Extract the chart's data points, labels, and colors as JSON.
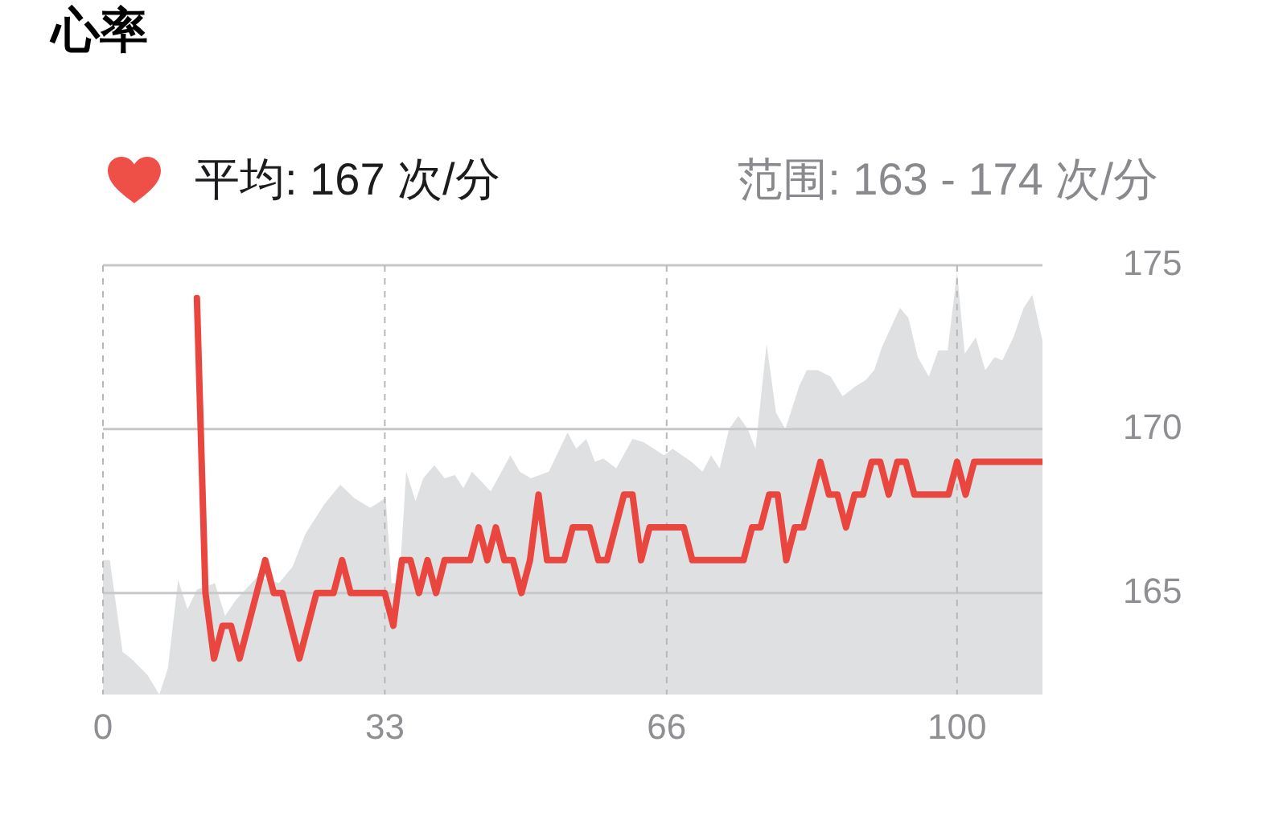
{
  "chart_data": {
    "type": "line",
    "title": "心率",
    "subtitle": "平均: 167 次/分",
    "annotations": [
      "范围: 163 - 174 次/分"
    ],
    "xlim": [
      0,
      110
    ],
    "xticks": [
      0,
      33,
      66,
      100
    ],
    "ylim": [
      161.9,
      175
    ],
    "yticks": [
      165,
      170,
      175
    ],
    "grid": true,
    "legend": false,
    "marker": "none",
    "line_style": "solid",
    "series": [
      {
        "type": "area",
        "color": "#dfe0e2",
        "x": [
          0,
          0.8,
          2.3,
          3.3,
          5.2,
          6.6,
          7.6,
          8.8,
          9.9,
          11,
          13.1,
          14.3,
          15.6,
          18.1,
          20.6,
          22.2,
          23.7,
          25.9,
          27.8,
          29.4,
          31.3,
          33.1,
          33.8,
          34.7,
          35.5,
          36.6,
          37.5,
          38.8,
          40,
          41.2,
          42.2,
          43.2,
          45.4,
          47.7,
          48.8,
          50.1,
          52.2,
          54.4,
          55.4,
          56.6,
          57.6,
          58.6,
          60.1,
          62,
          63.3,
          65.7,
          66.7,
          68.9,
          70.2,
          71.2,
          72.2,
          73.3,
          74.4,
          75.5,
          76.4,
          77.7,
          78.8,
          79.9,
          81.5,
          82.4,
          83.7,
          85.2,
          86.6,
          88.1,
          89.3,
          90.3,
          91.2,
          93.3,
          94.3,
          95.4,
          96.7,
          97.8,
          98.9,
          100,
          100.9,
          102.2,
          103.3,
          104.4,
          105.3,
          106.6,
          107.8,
          108.8,
          110
        ],
        "values": [
          166,
          166,
          163.2,
          163,
          162.5,
          161.9,
          162.7,
          165.4,
          164.5,
          165.1,
          165.3,
          164.3,
          164.8,
          165.5,
          165.3,
          165.8,
          166.8,
          167.7,
          168.3,
          167.9,
          167.6,
          167.9,
          165.3,
          165.3,
          168.7,
          167.8,
          168.5,
          168.9,
          168.5,
          168.6,
          168.2,
          168.7,
          168.1,
          169.2,
          168.7,
          168.5,
          168.7,
          169.9,
          169.4,
          169.7,
          169,
          169.1,
          168.8,
          169.7,
          169.6,
          169.2,
          169.4,
          169,
          168.7,
          169.2,
          168.8,
          170,
          170.4,
          170,
          169.4,
          172.6,
          170.5,
          170,
          171.3,
          171.8,
          171.8,
          171.6,
          171,
          171.3,
          171.5,
          171.8,
          172.5,
          173.7,
          173.4,
          172.2,
          171.6,
          172.4,
          172.4,
          174.8,
          172.3,
          172.8,
          171.8,
          172.2,
          172.1,
          172.8,
          173.7,
          174.1,
          172.7
        ]
      },
      {
        "type": "line",
        "color": "#e8463e",
        "x": [
          11,
          12,
          13,
          14,
          15,
          16,
          19,
          20,
          21,
          23,
          25,
          27,
          28,
          29,
          33,
          34,
          35,
          36,
          37,
          38,
          39,
          40,
          43,
          44,
          45,
          46,
          47,
          48,
          49,
          50,
          51,
          52,
          54,
          55,
          57,
          58,
          59,
          61,
          62,
          63,
          64,
          68,
          69,
          75,
          76,
          77,
          78,
          79,
          80,
          81,
          82,
          84,
          85,
          86,
          87,
          88,
          89,
          90,
          91,
          92,
          93,
          94,
          95,
          99,
          100,
          101,
          102,
          110
        ],
        "values": [
          174,
          165,
          163,
          164,
          164,
          163,
          166,
          165,
          165,
          163,
          165,
          165,
          166,
          165,
          165,
          164,
          166,
          166,
          165,
          166,
          165,
          166,
          166,
          167,
          166,
          167,
          166,
          166,
          165,
          166,
          168,
          166,
          166,
          167,
          167,
          166,
          166,
          168,
          168,
          166,
          167,
          167,
          166,
          166,
          167,
          167,
          168,
          168,
          166,
          167,
          167,
          169,
          168,
          168,
          167,
          168,
          168,
          169,
          169,
          168,
          169,
          169,
          168,
          168,
          169,
          168,
          169,
          169
        ]
      }
    ]
  }
}
